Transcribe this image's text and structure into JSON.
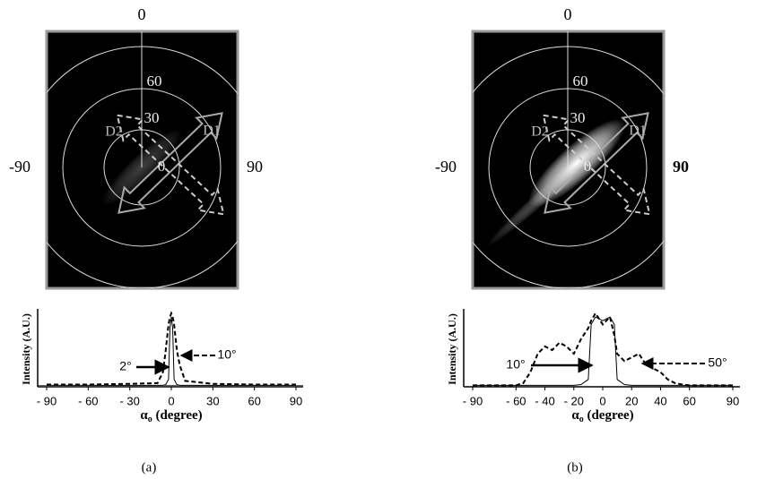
{
  "panels": [
    {
      "caption": "(a)",
      "polar": {
        "top": "0",
        "left": "-90",
        "right": "90",
        "rings": [
          "60",
          "30",
          "0"
        ],
        "arrows": [
          "D1",
          "D2"
        ]
      },
      "plot": {
        "type": "line",
        "ylabel": "Intensity (A.U.)",
        "xlabel_symbol": "α",
        "xlabel_subscript": "o",
        "xlabel_unit": "(degree)",
        "x": [
          -90,
          -60,
          -30,
          -10,
          -6,
          -4,
          -2,
          -1,
          0,
          1,
          2,
          4,
          6,
          10,
          30,
          60,
          90
        ],
        "series": [
          {
            "color": "#000000",
            "dash": false,
            "values": [
              0.02,
              0.02,
              0.02,
              0.02,
              0.02,
              0.03,
              0.1,
              0.8,
              0.95,
              0.8,
              0.1,
              0.03,
              0.02,
              0.02,
              0.02,
              0.02,
              0.02
            ]
          },
          {
            "color": "#000000",
            "dash": true,
            "values": [
              0.03,
              0.03,
              0.04,
              0.05,
              0.2,
              0.5,
              0.85,
              0.95,
              1,
              0.95,
              0.85,
              0.5,
              0.3,
              0.08,
              0.04,
              0.03,
              0.03
            ]
          }
        ],
        "xlim": [
          -90,
          90
        ],
        "ylim": [
          0,
          1
        ],
        "xticks": [
          {
            "value": -90,
            "label": "- 90"
          },
          {
            "value": -60,
            "label": "- 60"
          },
          {
            "value": -30,
            "label": "- 30"
          },
          0,
          30,
          60,
          90
        ],
        "annotations": [
          "2°",
          "10°"
        ]
      }
    },
    {
      "caption": "(b)",
      "polar": {
        "top": "0",
        "left": "-90",
        "right": "90",
        "rings": [
          "60",
          "30",
          "0"
        ],
        "arrows": [
          "D1",
          "D2"
        ]
      },
      "plot": {
        "type": "line",
        "ylabel": "Intensity (A.U.)",
        "xlabel_symbol": "α",
        "xlabel_subscript": "o",
        "xlabel_unit": "(degree)",
        "x": [
          -90,
          -60,
          -55,
          -50,
          -45,
          -40,
          -35,
          -30,
          -25,
          -20,
          -15,
          -10,
          -8,
          -5,
          0,
          5,
          8,
          10,
          15,
          20,
          25,
          30,
          35,
          40,
          45,
          50,
          55,
          60,
          90
        ],
        "series": [
          {
            "color": "#000000",
            "dash": false,
            "values": [
              0.02,
              0.02,
              0.02,
              0.02,
              0.02,
              0.02,
              0.02,
              0.02,
              0.02,
              0.02,
              0.03,
              0.1,
              0.85,
              0.95,
              0.9,
              0.95,
              0.85,
              0.1,
              0.03,
              0.02,
              0.02,
              0.02,
              0.02,
              0.02,
              0.02,
              0.02,
              0.02,
              0.02,
              0.02
            ]
          },
          {
            "color": "#000000",
            "dash": true,
            "values": [
              0.02,
              0.02,
              0.05,
              0.2,
              0.45,
              0.55,
              0.5,
              0.6,
              0.55,
              0.45,
              0.65,
              0.8,
              0.9,
              1,
              0.85,
              0.95,
              0.7,
              0.45,
              0.35,
              0.4,
              0.45,
              0.3,
              0.25,
              0.2,
              0.1,
              0.05,
              0.03,
              0.02,
              0.02
            ]
          }
        ],
        "xlim": [
          -90,
          90
        ],
        "ylim": [
          0,
          1
        ],
        "xticks": [
          {
            "value": -90,
            "label": "- 90"
          },
          {
            "value": -60,
            "label": "- 60"
          },
          {
            "value": -40,
            "label": "- 40"
          },
          {
            "value": -20,
            "label": "- 20"
          },
          0,
          20,
          40,
          60,
          90
        ],
        "annotations": [
          "10°",
          "50°"
        ]
      }
    }
  ]
}
